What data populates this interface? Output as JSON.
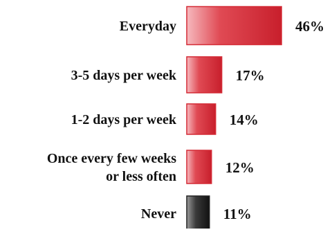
{
  "chart_data": {
    "type": "bar",
    "orientation": "horizontal",
    "categories": [
      [
        "Everyday"
      ],
      [
        "3-5 days per week"
      ],
      [
        "1-2 days per week"
      ],
      [
        "Once every few weeks",
        "or less often"
      ],
      [
        "Never"
      ]
    ],
    "values": [
      46,
      17,
      14,
      12,
      11
    ],
    "value_labels": [
      "46%",
      "17%",
      "14%",
      "12%",
      "11%"
    ],
    "bar_colors": [
      "#d42a35",
      "#d42a35",
      "#d42a35",
      "#d42a35",
      "#222222"
    ],
    "xlim": [
      0,
      46
    ],
    "grid": false,
    "legend": "none"
  }
}
